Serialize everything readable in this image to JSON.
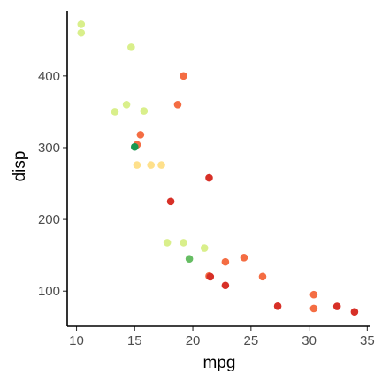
{
  "chart_data": {
    "type": "scatter",
    "xlabel": "mpg",
    "ylabel": "disp",
    "xlim": [
      9.2,
      35.2
    ],
    "ylim": [
      51,
      491
    ],
    "x_ticks": [
      10,
      15,
      20,
      25,
      30,
      35
    ],
    "y_ticks": [
      100,
      200,
      300,
      400
    ],
    "x_tick_labels": [
      "10",
      "15",
      "20",
      "25",
      "30",
      "35"
    ],
    "y_tick_labels": [
      "100",
      "200",
      "300",
      "400"
    ],
    "grid": false,
    "legend": "none",
    "points": [
      {
        "x": 10.4,
        "y": 472,
        "color": "#d9ef8b"
      },
      {
        "x": 10.4,
        "y": 460,
        "color": "#d9ef8b"
      },
      {
        "x": 14.7,
        "y": 440,
        "color": "#d9ef8b"
      },
      {
        "x": 19.2,
        "y": 400,
        "color": "#f46d43"
      },
      {
        "x": 18.7,
        "y": 360,
        "color": "#f46d43"
      },
      {
        "x": 14.3,
        "y": 360,
        "color": "#d9ef8b"
      },
      {
        "x": 13.3,
        "y": 350,
        "color": "#d9ef8b"
      },
      {
        "x": 15.8,
        "y": 351,
        "color": "#d9ef8b"
      },
      {
        "x": 15.5,
        "y": 318,
        "color": "#f46d43"
      },
      {
        "x": 15.2,
        "y": 304,
        "color": "#f46d43"
      },
      {
        "x": 15.0,
        "y": 301,
        "color": "#1a9850"
      },
      {
        "x": 15.2,
        "y": 275.8,
        "color": "#fee08b"
      },
      {
        "x": 16.4,
        "y": 275.8,
        "color": "#fee08b"
      },
      {
        "x": 17.3,
        "y": 275.8,
        "color": "#fee08b"
      },
      {
        "x": 21.4,
        "y": 258,
        "color": "#d73027"
      },
      {
        "x": 18.1,
        "y": 225,
        "color": "#d73027"
      },
      {
        "x": 17.8,
        "y": 167.6,
        "color": "#d9ef8b"
      },
      {
        "x": 19.2,
        "y": 167.6,
        "color": "#d9ef8b"
      },
      {
        "x": 21.0,
        "y": 160,
        "color": "#d9ef8b"
      },
      {
        "x": 19.7,
        "y": 145,
        "color": "#66bd63"
      },
      {
        "x": 24.4,
        "y": 146.7,
        "color": "#f46d43"
      },
      {
        "x": 22.8,
        "y": 140.8,
        "color": "#f46d43"
      },
      {
        "x": 21.4,
        "y": 121,
        "color": "#f46d43"
      },
      {
        "x": 21.5,
        "y": 120.1,
        "color": "#d73027"
      },
      {
        "x": 26.0,
        "y": 120.3,
        "color": "#f46d43"
      },
      {
        "x": 22.8,
        "y": 108,
        "color": "#d73027"
      },
      {
        "x": 30.4,
        "y": 95.1,
        "color": "#f46d43"
      },
      {
        "x": 27.3,
        "y": 79,
        "color": "#d73027"
      },
      {
        "x": 32.4,
        "y": 78.7,
        "color": "#d73027"
      },
      {
        "x": 30.4,
        "y": 75.7,
        "color": "#f46d43"
      },
      {
        "x": 33.9,
        "y": 71.1,
        "color": "#d73027"
      }
    ]
  }
}
